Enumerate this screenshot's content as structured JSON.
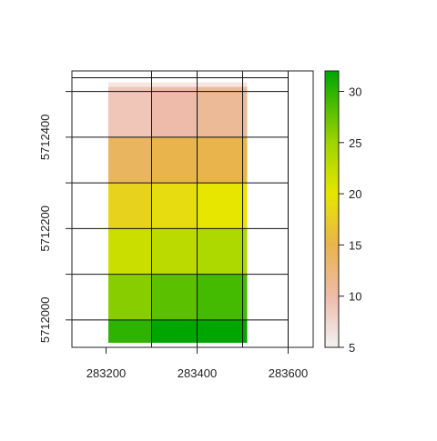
{
  "chart_data": {
    "type": "heatmap",
    "title": "",
    "xlabel": "",
    "ylabel": "",
    "xlim": [
      283125,
      283655
    ],
    "ylim": [
      5711940,
      5712545
    ],
    "x_ticks": [
      283200,
      283400,
      283600
    ],
    "x_tick_labels": [
      "283200",
      "283400",
      "283600"
    ],
    "y_ticks": [
      5712000,
      5712200,
      5712400
    ],
    "y_tick_labels": [
      "5712000",
      "5712200",
      "5712400"
    ],
    "grid_x": [
      283125,
      283300,
      283400,
      283500,
      283600,
      283655
    ],
    "grid_y": [
      5712530,
      5712500,
      5712400,
      5712300,
      5712200,
      5712100,
      5712000
    ],
    "grid_top": 5712545,
    "raster": {
      "x_edges": [
        283205,
        283300,
        283400,
        283510
      ],
      "y_edges": [
        5712510,
        5712400,
        5712300,
        5712200,
        5712100,
        5712000,
        5711950
      ],
      "top_strip": [
        5712520,
        5712510
      ],
      "values": [
        [
          9,
          10,
          11
        ],
        [
          14,
          15,
          15
        ],
        [
          18,
          19,
          20
        ],
        [
          22,
          23,
          24
        ],
        [
          26,
          28,
          29
        ],
        [
          30,
          32,
          32
        ]
      ]
    },
    "colorbar": {
      "range": [
        5,
        32
      ],
      "ticks": [
        5,
        10,
        15,
        20,
        25,
        30
      ],
      "tick_labels": [
        "5",
        "10",
        "15",
        "20",
        "25",
        "30"
      ],
      "stops": [
        {
          "v": 5,
          "color": "#f2f2f2"
        },
        {
          "v": 10,
          "color": "#eebbaa"
        },
        {
          "v": 15,
          "color": "#e9b44c"
        },
        {
          "v": 20,
          "color": "#e6e600"
        },
        {
          "v": 25,
          "color": "#9fd400"
        },
        {
          "v": 32,
          "color": "#00a600"
        }
      ]
    },
    "grid": true,
    "legend": "right"
  }
}
